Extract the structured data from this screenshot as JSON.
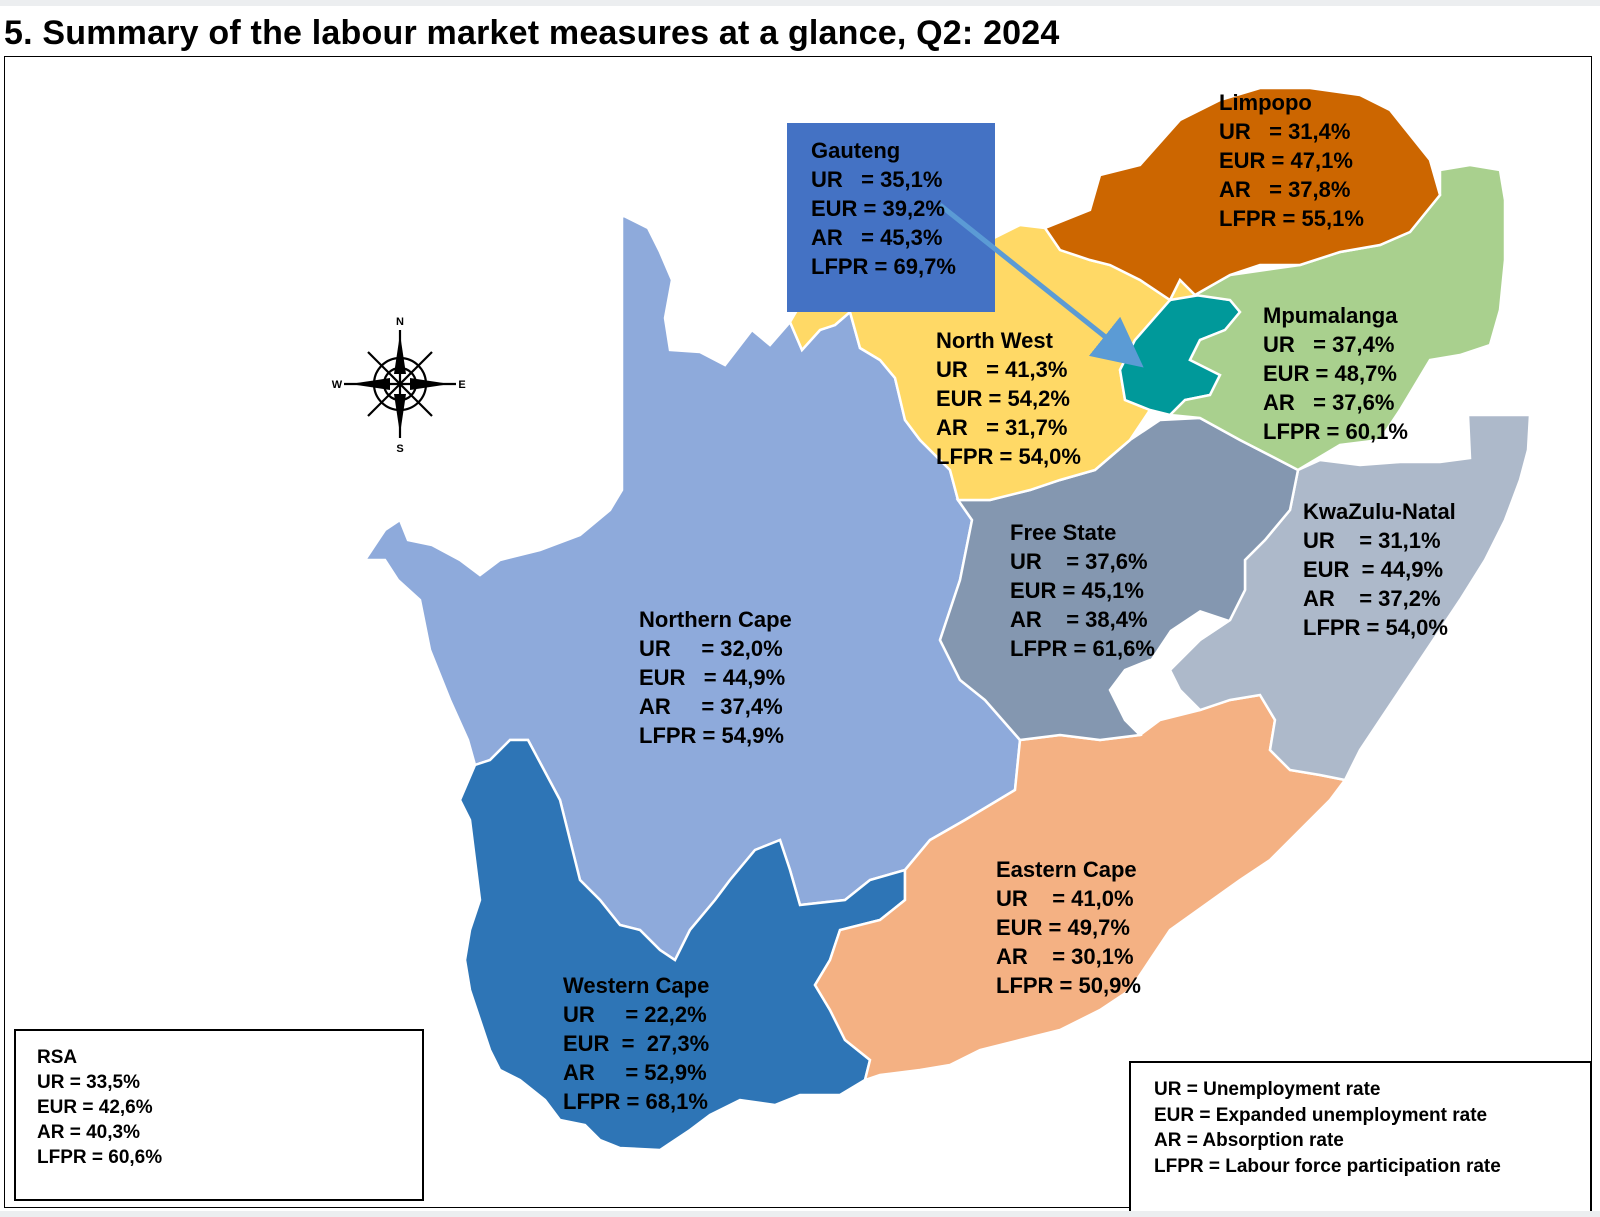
{
  "title": "5. Summary of the labour market measures at a glance, Q2: 2024",
  "colors": {
    "limpopo": "#cc6600",
    "mpumalanga": "#a9d08e",
    "gauteng_region": "#00999a",
    "gauteng_box": "#4472c4",
    "north_west": "#ffd966",
    "northern_cape": "#8eaadb",
    "free_state": "#8497b0",
    "kwazulu_natal": "#adb9ca",
    "eastern_cape": "#f4b183",
    "western_cape": "#2e75b6",
    "arrow": "#5b9bd5"
  },
  "provinces": {
    "limpopo": {
      "name": "Limpopo",
      "ur": "UR   = 31,4%",
      "eur": "EUR = 47,1%",
      "ar": "AR   = 37,8%",
      "lfpr": "LFPR = 55,1%"
    },
    "gauteng": {
      "name": "Gauteng",
      "ur": "UR   = 35,1%",
      "eur": "EUR = 39,2%",
      "ar": "AR   = 45,3%",
      "lfpr": "LFPR = 69,7%"
    },
    "north_west": {
      "name": "North West",
      "ur": "UR   = 41,3%",
      "eur": "EUR = 54,2%",
      "ar": "AR   = 31,7%",
      "lfpr": "LFPR = 54,0%"
    },
    "mpumalanga": {
      "name": "Mpumalanga",
      "ur": "UR   = 37,4%",
      "eur": "EUR = 48,7%",
      "ar": "AR   = 37,6%",
      "lfpr": "LFPR = 60,1%"
    },
    "kwazulu_natal": {
      "name": "KwaZulu-Natal",
      "ur": "UR    = 31,1%",
      "eur": "EUR  = 44,9%",
      "ar": "AR    = 37,2%",
      "lfpr": "LFPR = 54,0%"
    },
    "free_state": {
      "name": "Free State",
      "ur": "UR    = 37,6%",
      "eur": "EUR = 45,1%",
      "ar": "AR    = 38,4%",
      "lfpr": "LFPR = 61,6%"
    },
    "northern_cape": {
      "name": "Northern Cape",
      "ur": "UR     = 32,0%",
      "eur": "EUR   = 44,9%",
      "ar": "AR     = 37,4%",
      "lfpr": "LFPR = 54,9%"
    },
    "eastern_cape": {
      "name": "Eastern Cape",
      "ur": "UR    = 41,0%",
      "eur": "EUR = 49,7%",
      "ar": "AR    = 30,1%",
      "lfpr": "LFPR = 50,9%"
    },
    "western_cape": {
      "name": "Western Cape",
      "ur": "UR     = 22,2%",
      "eur": "EUR  =  27,3%",
      "ar": "AR     = 52,9%",
      "lfpr": "LFPR = 68,1%"
    }
  },
  "rsa": {
    "name": "RSA",
    "ur": "UR = 33,5%",
    "eur": "EUR = 42,6%",
    "ar": "AR = 40,3%",
    "lfpr": "LFPR = 60,6%"
  },
  "key": {
    "ur": "UR = Unemployment rate",
    "eur": "EUR = Expanded unemployment rate",
    "ar": "AR = Absorption rate",
    "lfpr": "LFPR = Labour force participation rate"
  },
  "compass": {
    "n": "N",
    "e": "E",
    "s": "S",
    "w": "W"
  }
}
